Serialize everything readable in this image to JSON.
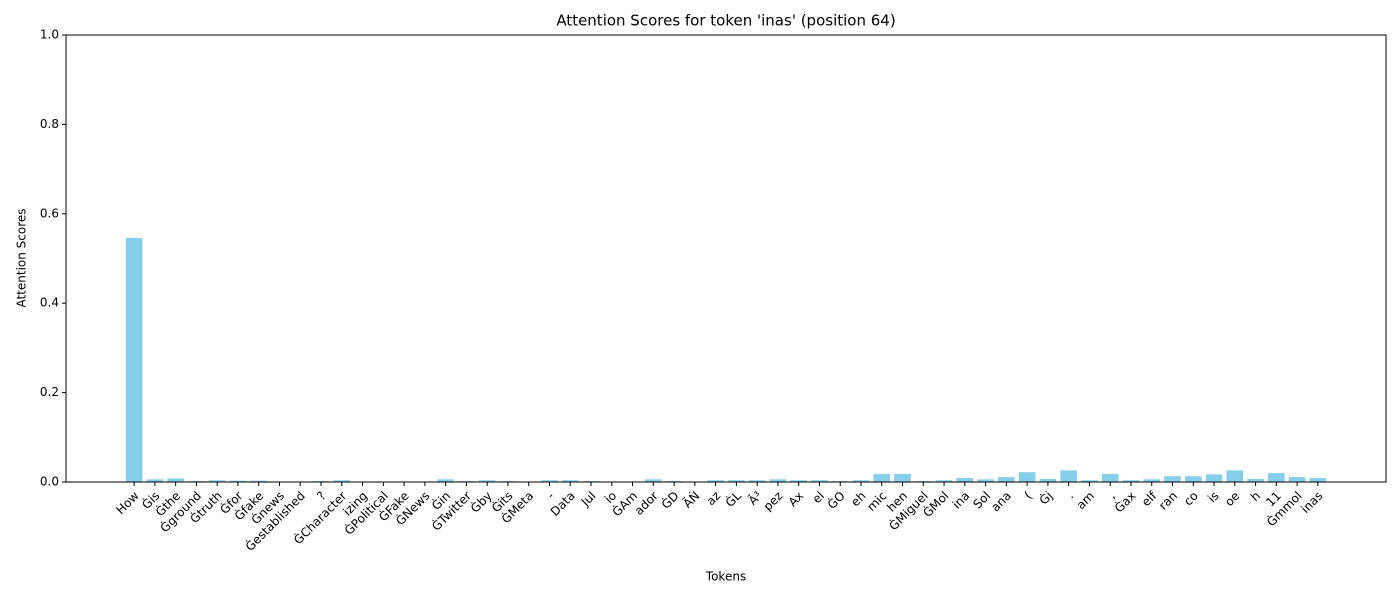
{
  "chart_data": {
    "type": "bar",
    "title": "Attention Scores for token 'inas' (position 64)",
    "xlabel": "Tokens",
    "ylabel": "Attention Scores",
    "categories": [
      "How",
      "Ġis",
      "Ġthe",
      "Ġground",
      "Ġtruth",
      "Ġfor",
      "Ġfake",
      "Ġnews",
      "Ġestablished",
      "?",
      "ĠCharacter",
      "izing",
      "ĠPolitical",
      "ĠFake",
      "ĠNews",
      "Ġin",
      "ĠTwitter",
      "Ġby",
      "Ġits",
      "ĠMeta",
      "-",
      "Data",
      "Jul",
      "io",
      "ĠAm",
      "ador",
      "ĠD",
      "ÃŃ",
      "az",
      "ĠL",
      "Ã³",
      "pez",
      "Ax",
      "el",
      "ĠO",
      "eh",
      "mic",
      "hen",
      "ĠMiguel",
      "ĠMol",
      "ina",
      "Sol",
      "ana",
      "(",
      "Ġj",
      ".",
      "am",
      ",",
      "Ġax",
      "elf",
      "ran",
      "co",
      "is",
      "oe",
      "h",
      "11",
      "Ġmmol",
      "inas"
    ],
    "values": [
      0.546,
      0.006,
      0.008,
      0.002,
      0.004,
      0.003,
      0.003,
      0.001,
      0.001,
      0.002,
      0.004,
      0.001,
      0.001,
      0.001,
      0.001,
      0.006,
      0.002,
      0.004,
      0.002,
      0.001,
      0.004,
      0.004,
      0.002,
      0.001,
      0.001,
      0.006,
      0.002,
      0.001,
      0.004,
      0.004,
      0.004,
      0.006,
      0.004,
      0.004,
      0.002,
      0.004,
      0.018,
      0.018,
      0.002,
      0.004,
      0.009,
      0.006,
      0.011,
      0.022,
      0.007,
      0.026,
      0.004,
      0.018,
      0.004,
      0.006,
      0.013,
      0.013,
      0.017,
      0.026,
      0.007,
      0.02,
      0.011,
      0.009
    ],
    "color": "#87ceeb",
    "ylim": [
      0,
      1
    ],
    "yticks": [
      {
        "value": 0,
        "label": "0.0"
      },
      0.2,
      0.4,
      0.6,
      0.8,
      {
        "value": 1,
        "label": "1.0"
      }
    ],
    "grid": false
  }
}
